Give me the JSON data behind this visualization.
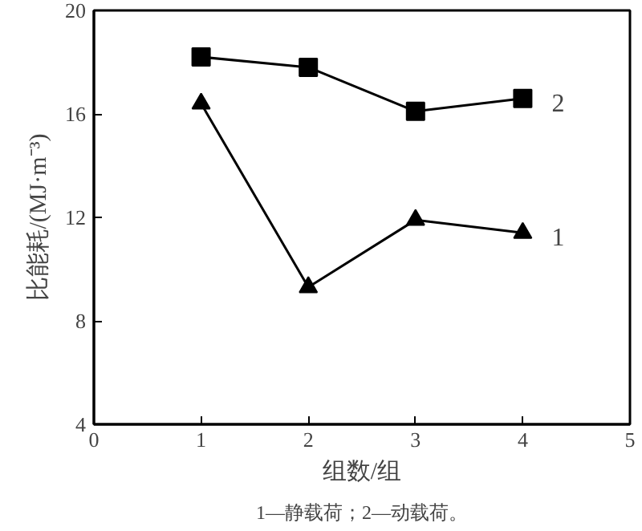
{
  "chart_data": {
    "type": "line",
    "xlabel": "组数/组",
    "ylabel": "比能耗/(MJ·m⁻³)",
    "x": [
      1,
      2,
      3,
      4
    ],
    "series": [
      {
        "name": "2",
        "color": "#000000",
        "marker": "square",
        "values": [
          18.2,
          17.8,
          16.1,
          16.6
        ]
      },
      {
        "name": "1",
        "color": "#000000",
        "marker": "triangle",
        "values": [
          16.4,
          9.3,
          11.9,
          11.4
        ]
      }
    ],
    "xlim": [
      0,
      5
    ],
    "xticks": [
      0,
      1,
      2,
      3,
      4,
      5
    ],
    "ylim": [
      4,
      20
    ],
    "yticks": [
      4,
      8,
      12,
      16,
      20
    ],
    "grid": false,
    "line_style": "solid",
    "annotations": [
      "1—静载荷；2—动载荷。"
    ]
  }
}
